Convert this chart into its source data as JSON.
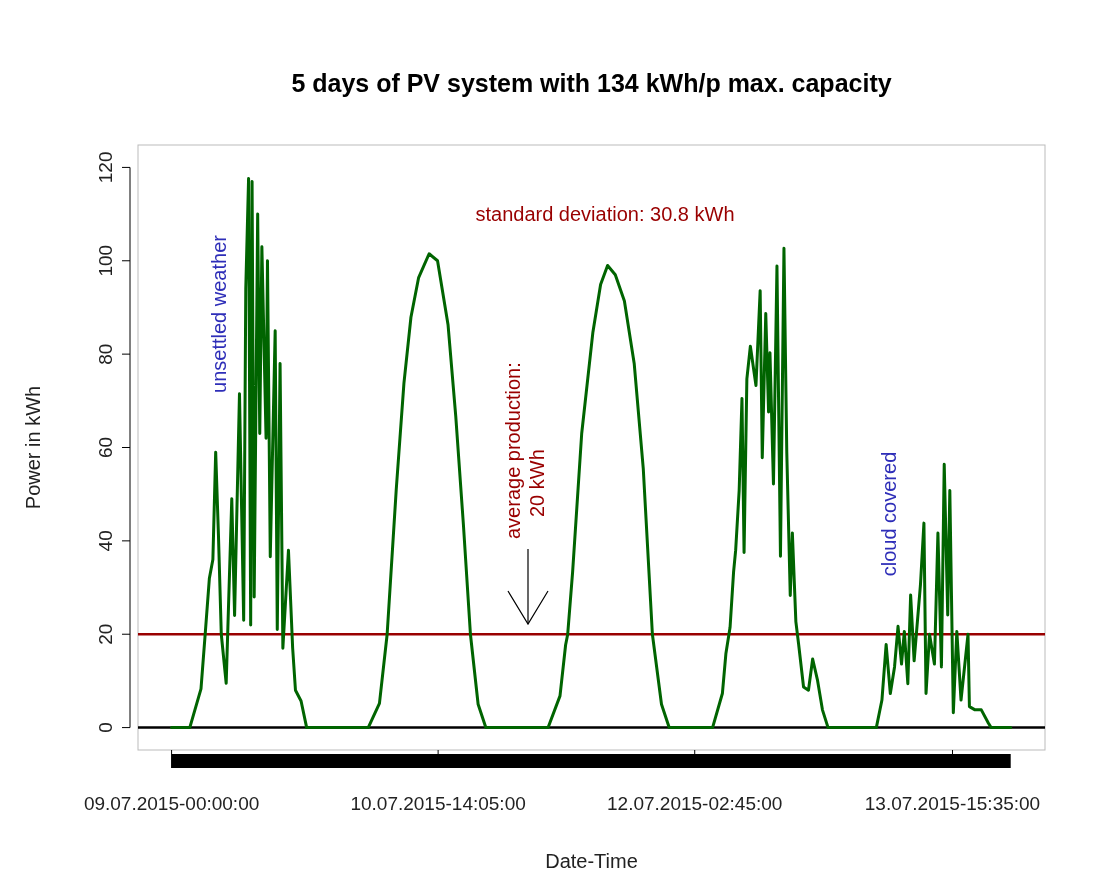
{
  "chart_data": {
    "type": "line",
    "title": "5 days of PV system with 134 kWh/p max. capacity",
    "xlabel": "Date-Time",
    "ylabel": "Power in kWh",
    "xlim": [
      "2015-07-08T19:12",
      "2015-07-14T04:48"
    ],
    "xticks": [
      {
        "value": "2015-07-09T00:00",
        "label": "09.07.2015-00:00:00"
      },
      {
        "value": "2015-07-10T14:05",
        "label": "10.07.2015-14:05:00"
      },
      {
        "value": "2015-07-12T02:45",
        "label": "12.07.2015-02:45:00"
      },
      {
        "value": "2015-07-13T15:35",
        "label": "13.07.2015-15:35:00"
      }
    ],
    "ylim": [
      -4.8,
      124.8
    ],
    "yticks": [
      0,
      20,
      40,
      60,
      80,
      100,
      120
    ],
    "series": [
      {
        "color": "#006400",
        "x": [
          "2015-07-09T00:00",
          "2015-07-09T02:36",
          "2015-07-09T04:12",
          "2015-07-09T04:48",
          "2015-07-09T05:24",
          "2015-07-09T05:54",
          "2015-07-09T06:18",
          "2015-07-09T06:42",
          "2015-07-09T07:06",
          "2015-07-09T07:48",
          "2015-07-09T08:36",
          "2015-07-09T09:00",
          "2015-07-09T09:42",
          "2015-07-09T10:18",
          "2015-07-09T10:36",
          "2015-07-09T11:00",
          "2015-07-09T11:18",
          "2015-07-09T11:30",
          "2015-07-09T11:48",
          "2015-07-09T12:18",
          "2015-07-09T12:36",
          "2015-07-09T12:54",
          "2015-07-09T13:30",
          "2015-07-09T13:42",
          "2015-07-09T14:06",
          "2015-07-09T14:48",
          "2015-07-09T15:06",
          "2015-07-09T15:30",
          "2015-07-09T15:54",
          "2015-07-09T16:42",
          "2015-07-09T17:18",
          "2015-07-09T17:42",
          "2015-07-09T18:30",
          "2015-07-09T19:18",
          "2015-07-10T04:06",
          "2015-07-10T05:42",
          "2015-07-10T06:48",
          "2015-07-10T08:06",
          "2015-07-10T09:12",
          "2015-07-10T10:12",
          "2015-07-10T11:18",
          "2015-07-10T12:48",
          "2015-07-10T14:00",
          "2015-07-10T15:30",
          "2015-07-10T16:36",
          "2015-07-10T17:42",
          "2015-07-10T18:42",
          "2015-07-10T19:48",
          "2015-07-10T20:54",
          "2015-07-11T05:48",
          "2015-07-11T07:30",
          "2015-07-11T08:18",
          "2015-07-11T08:36",
          "2015-07-11T09:18",
          "2015-07-11T10:36",
          "2015-07-11T12:12",
          "2015-07-11T13:18",
          "2015-07-11T14:18",
          "2015-07-11T15:24",
          "2015-07-11T16:42",
          "2015-07-11T18:06",
          "2015-07-11T19:24",
          "2015-07-11T20:42",
          "2015-07-11T22:00",
          "2015-07-11T23:06",
          "2015-07-12T05:18",
          "2015-07-12T06:42",
          "2015-07-12T07:12",
          "2015-07-12T07:48",
          "2015-07-12T08:18",
          "2015-07-12T08:36",
          "2015-07-12T09:06",
          "2015-07-12T09:30",
          "2015-07-12T09:48",
          "2015-07-12T10:12",
          "2015-07-12T10:42",
          "2015-07-12T11:30",
          "2015-07-12T12:06",
          "2015-07-12T12:24",
          "2015-07-12T12:54",
          "2015-07-12T13:18",
          "2015-07-12T13:30",
          "2015-07-12T14:00",
          "2015-07-12T14:30",
          "2015-07-12T15:00",
          "2015-07-12T15:30",
          "2015-07-12T15:54",
          "2015-07-12T16:24",
          "2015-07-12T16:42",
          "2015-07-12T17:12",
          "2015-07-12T17:36",
          "2015-07-12T18:18",
          "2015-07-12T19:00",
          "2015-07-12T19:36",
          "2015-07-12T20:18",
          "2015-07-12T21:00",
          "2015-07-12T21:48",
          "2015-07-13T04:42",
          "2015-07-13T05:30",
          "2015-07-13T06:06",
          "2015-07-13T06:42",
          "2015-07-13T07:18",
          "2015-07-13T07:48",
          "2015-07-13T08:18",
          "2015-07-13T08:42",
          "2015-07-13T09:12",
          "2015-07-13T09:36",
          "2015-07-13T10:06",
          "2015-07-13T11:00",
          "2015-07-13T11:30",
          "2015-07-13T11:48",
          "2015-07-13T12:18",
          "2015-07-13T13:00",
          "2015-07-13T13:30",
          "2015-07-13T14:00",
          "2015-07-13T14:24",
          "2015-07-13T14:54",
          "2015-07-13T15:12",
          "2015-07-13T15:42",
          "2015-07-13T16:12",
          "2015-07-13T16:48",
          "2015-07-13T17:48",
          "2015-07-13T18:00",
          "2015-07-13T18:48",
          "2015-07-13T19:42",
          "2015-07-13T20:42",
          "2015-07-13T21:06",
          "2015-07-13T23:54"
        ],
        "values": [
          0,
          0,
          8.3,
          20,
          32,
          36,
          59,
          41,
          20,
          9.5,
          49,
          24,
          71.5,
          23,
          94,
          117.6,
          22,
          117,
          28,
          110,
          63,
          103,
          62,
          100,
          36.6,
          85,
          21,
          78,
          17,
          38,
          17,
          8,
          5.7,
          0,
          0,
          5.2,
          20,
          51,
          73.8,
          87.9,
          96.4,
          101.5,
          100,
          86.3,
          66.8,
          43.4,
          20,
          5,
          0,
          0,
          6.8,
          17.7,
          20,
          33.3,
          63,
          84.7,
          94.9,
          99,
          97,
          91.4,
          78,
          55.4,
          20,
          5,
          0,
          0,
          7.3,
          15.8,
          21.5,
          33.3,
          38,
          50.8,
          70.5,
          37.5,
          74.7,
          81.7,
          73.3,
          93.6,
          57.8,
          88.7,
          67.6,
          80.3,
          52.2,
          98.9,
          36.7,
          102.7,
          59.2,
          28.3,
          41.7,
          22.7,
          17.8,
          8.7,
          8,
          14.7,
          10.1,
          3.8,
          0,
          0,
          5.9,
          17.8,
          7.3,
          13,
          21.7,
          13.6,
          20.6,
          9.4,
          28.4,
          14.3,
          30.5,
          43.8,
          7.3,
          20,
          13.6,
          41.7,
          13,
          56.4,
          24.1,
          50.8,
          3.2,
          20.6,
          5.9,
          20,
          4.5,
          3.8,
          3.8,
          1,
          0,
          0
        ]
      }
    ],
    "ref_lines": [
      {
        "axis": "y",
        "value": 20,
        "color": "#990000"
      },
      {
        "axis": "y",
        "value": 0,
        "color": "#000000"
      }
    ],
    "annotations": [
      "standard deviation:  30.8  kWh",
      "unsettled weather",
      "cloud covered",
      "average production:\n20 kWh"
    ],
    "grid": false,
    "marker": "none",
    "line_style": "solid"
  }
}
